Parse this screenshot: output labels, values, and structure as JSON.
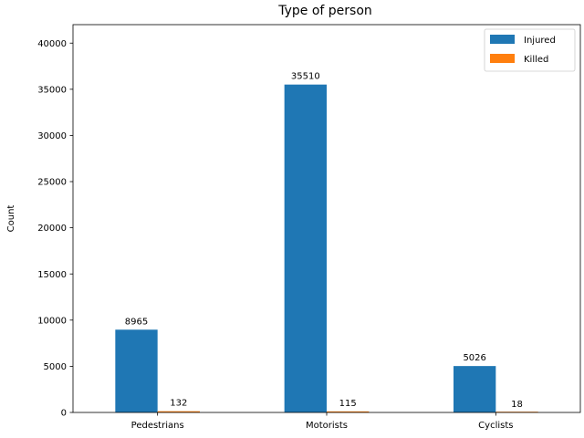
{
  "chart_data": {
    "type": "bar",
    "title": "Type of person",
    "xlabel": "",
    "ylabel": "Count",
    "categories": [
      "Pedestrians",
      "Motorists",
      "Cyclists"
    ],
    "series": [
      {
        "name": "Injured",
        "values": [
          8965,
          35510,
          5026
        ],
        "color": "#1f77b4"
      },
      {
        "name": "Killed",
        "values": [
          132,
          115,
          18
        ],
        "color": "#ff7f0e"
      }
    ],
    "ylim": [
      0,
      42000
    ],
    "yticks": [
      0,
      5000,
      10000,
      15000,
      20000,
      25000,
      30000,
      35000,
      40000
    ],
    "grid": false,
    "legend_position": "top-right"
  }
}
